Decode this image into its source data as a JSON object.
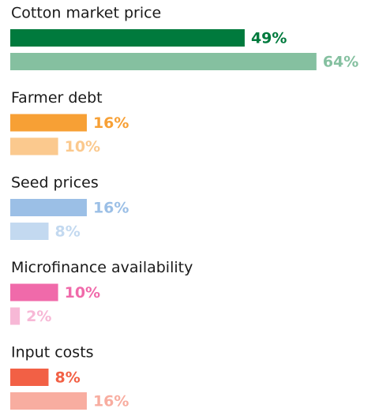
{
  "chart_data": {
    "type": "bar",
    "orientation": "horizontal",
    "groups": [
      {
        "label": "Cotton market price",
        "values": [
          49,
          64
        ],
        "value_labels": [
          "49%",
          "64%"
        ],
        "colors": [
          "#007a3d",
          "#85c0a0"
        ]
      },
      {
        "label": "Farmer debt",
        "values": [
          16,
          10
        ],
        "value_labels": [
          "16%",
          "10%"
        ],
        "colors": [
          "#f7a035",
          "#fbc98e"
        ]
      },
      {
        "label": "Seed prices",
        "values": [
          16,
          8
        ],
        "value_labels": [
          "16%",
          "8%"
        ],
        "colors": [
          "#9bbfe6",
          "#c3d9f0"
        ]
      },
      {
        "label": "Microfinance availability",
        "values": [
          10,
          2
        ],
        "value_labels": [
          "10%",
          "2%"
        ],
        "colors": [
          "#f06aaa",
          "#f7b8d6"
        ]
      },
      {
        "label": "Input costs",
        "values": [
          8,
          16
        ],
        "value_labels": [
          "8%",
          "16%"
        ],
        "colors": [
          "#f26045",
          "#f8ada0"
        ]
      }
    ]
  }
}
